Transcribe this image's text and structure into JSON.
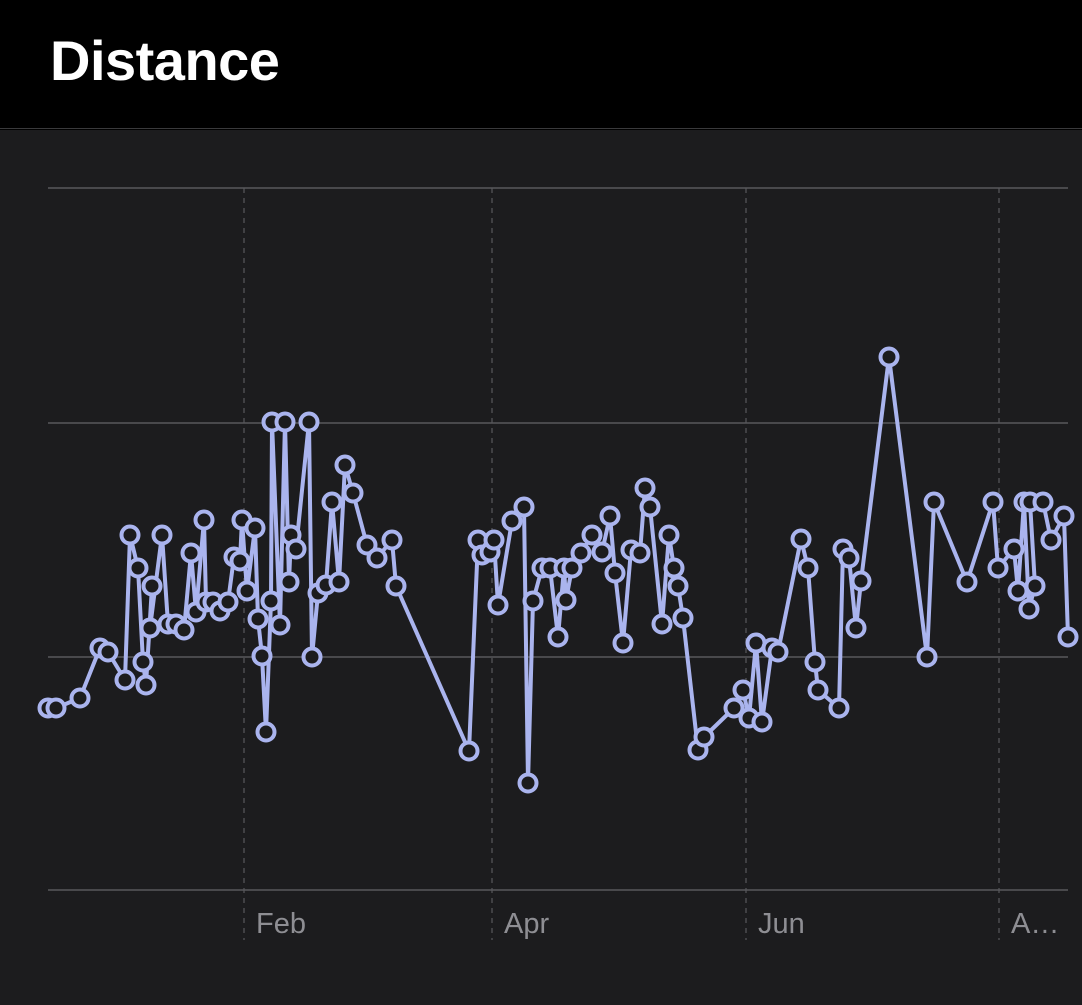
{
  "header": {
    "title": "Distance"
  },
  "colors": {
    "series": "#aab4ee",
    "marker_fill": "#1c1c1e",
    "grid": "#58585c",
    "tick_text": "#8e8e93",
    "background": "#1c1c1e"
  },
  "chart_data": {
    "type": "line",
    "title": "Distance",
    "xlabel": "",
    "ylabel": "",
    "x_tick_labels": [
      "Feb",
      "Apr",
      "Jun",
      "A…"
    ],
    "y_gridlines": 4,
    "grid": true,
    "markers": "hollow-circle",
    "points": [
      [
        48,
        708
      ],
      [
        56,
        708
      ],
      [
        80,
        698
      ],
      [
        100,
        648
      ],
      [
        108,
        652
      ],
      [
        125,
        680
      ],
      [
        130,
        535
      ],
      [
        138,
        568
      ],
      [
        143,
        662
      ],
      [
        146,
        685
      ],
      [
        152,
        586
      ],
      [
        150,
        628
      ],
      [
        162,
        535
      ],
      [
        168,
        624
      ],
      [
        176,
        624
      ],
      [
        184,
        630
      ],
      [
        191,
        553
      ],
      [
        196,
        612
      ],
      [
        204,
        520
      ],
      [
        206,
        602
      ],
      [
        213,
        602
      ],
      [
        220,
        611
      ],
      [
        228,
        602
      ],
      [
        234,
        557
      ],
      [
        240,
        561
      ],
      [
        242,
        520
      ],
      [
        247,
        591
      ],
      [
        255,
        528
      ],
      [
        258,
        619
      ],
      [
        262,
        656
      ],
      [
        266,
        732
      ],
      [
        271,
        601
      ],
      [
        272,
        422
      ],
      [
        280,
        625
      ],
      [
        285,
        422
      ],
      [
        289,
        582
      ],
      [
        291,
        535
      ],
      [
        296,
        549
      ],
      [
        309,
        422
      ],
      [
        312,
        657
      ],
      [
        318,
        593
      ],
      [
        326,
        585
      ],
      [
        332,
        502
      ],
      [
        339,
        582
      ],
      [
        345,
        465
      ],
      [
        353,
        493
      ],
      [
        367,
        545
      ],
      [
        377,
        558
      ],
      [
        392,
        540
      ],
      [
        396,
        586
      ],
      [
        469,
        751
      ],
      [
        478,
        540
      ],
      [
        482,
        555
      ],
      [
        490,
        552
      ],
      [
        494,
        540
      ],
      [
        498,
        605
      ],
      [
        512,
        521
      ],
      [
        524,
        507
      ],
      [
        528,
        783
      ],
      [
        533,
        601
      ],
      [
        542,
        568
      ],
      [
        550,
        568
      ],
      [
        558,
        637
      ],
      [
        564,
        568
      ],
      [
        566,
        600
      ],
      [
        572,
        568
      ],
      [
        581,
        553
      ],
      [
        592,
        535
      ],
      [
        602,
        552
      ],
      [
        610,
        516
      ],
      [
        615,
        573
      ],
      [
        623,
        643
      ],
      [
        631,
        550
      ],
      [
        640,
        553
      ],
      [
        645,
        488
      ],
      [
        650,
        507
      ],
      [
        662,
        624
      ],
      [
        669,
        535
      ],
      [
        674,
        568
      ],
      [
        678,
        586
      ],
      [
        683,
        618
      ],
      [
        698,
        750
      ],
      [
        704,
        737
      ],
      [
        734,
        708
      ],
      [
        743,
        690
      ],
      [
        749,
        718
      ],
      [
        756,
        643
      ],
      [
        762,
        722
      ],
      [
        772,
        648
      ],
      [
        778,
        652
      ],
      [
        801,
        539
      ],
      [
        808,
        568
      ],
      [
        815,
        662
      ],
      [
        818,
        690
      ],
      [
        839,
        708
      ],
      [
        843,
        549
      ],
      [
        849,
        558
      ],
      [
        856,
        628
      ],
      [
        861,
        581
      ],
      [
        889,
        357
      ],
      [
        927,
        657
      ],
      [
        934,
        502
      ],
      [
        967,
        582
      ],
      [
        993,
        502
      ],
      [
        998,
        568
      ],
      [
        1014,
        549
      ],
      [
        1018,
        591
      ],
      [
        1024,
        502
      ],
      [
        1029,
        609
      ],
      [
        1035,
        586
      ],
      [
        1030,
        502
      ],
      [
        1043,
        502
      ],
      [
        1051,
        540
      ],
      [
        1064,
        516
      ],
      [
        1068,
        637
      ]
    ]
  }
}
